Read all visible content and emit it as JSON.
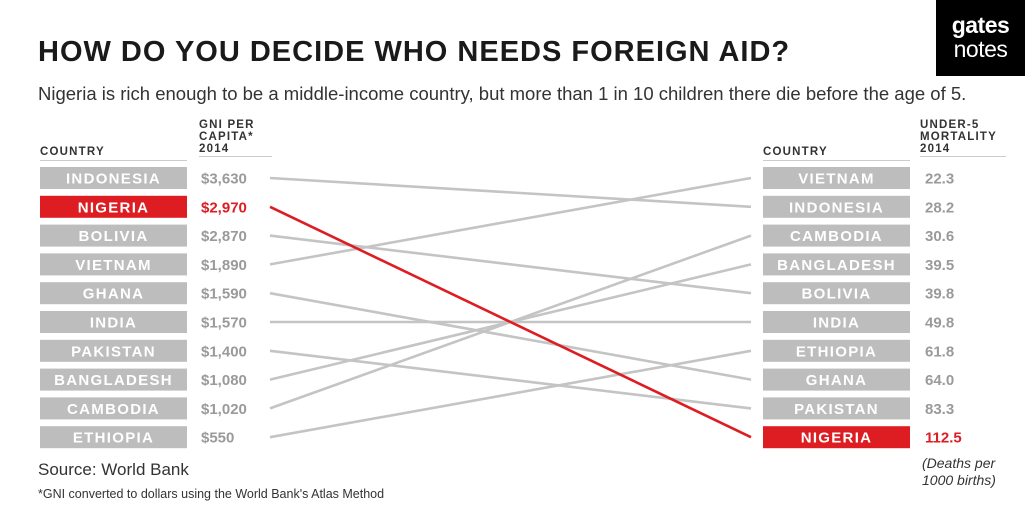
{
  "brand": {
    "line1": "gates",
    "line2": "notes"
  },
  "title": "HOW DO YOU DECIDE WHO NEEDS FOREIGN AID?",
  "subtitle": "Nigeria is rich enough to be a middle-income country, but more than 1 in 10 children there die before the age of 5.",
  "headers": {
    "left_country": "COUNTRY",
    "right_country": "COUNTRY",
    "gni_line1": "GNI PER",
    "gni_line2": "CAPITA*",
    "gni_year": "2014",
    "mort_line1": "UNDER-5",
    "mort_line2": "MORTALITY",
    "mort_year": "2014"
  },
  "source": "Source: World Bank",
  "footnote": "*GNI converted to dollars using the World Bank's Atlas Method",
  "units_line1": "(Deaths per",
  "units_line2": "1000 births)",
  "colors": {
    "highlight": "#dd1d22",
    "box": "#bdbdbd",
    "value_text": "#9a9a9a",
    "line": "#c4c4c4",
    "mort_text": "#9a9a9a"
  },
  "chart_data": {
    "type": "slope",
    "title": "HOW DO YOU DECIDE WHO NEEDS FOREIGN AID?",
    "highlight": "NIGERIA",
    "left": {
      "label": "GNI PER CAPITA* 2014",
      "entries": [
        {
          "country": "INDONESIA",
          "display": "$3,630",
          "value": 3630
        },
        {
          "country": "NIGERIA",
          "display": "$2,970",
          "value": 2970
        },
        {
          "country": "BOLIVIA",
          "display": "$2,870",
          "value": 2870
        },
        {
          "country": "VIETNAM",
          "display": "$1,890",
          "value": 1890
        },
        {
          "country": "GHANA",
          "display": "$1,590",
          "value": 1590
        },
        {
          "country": "INDIA",
          "display": "$1,570",
          "value": 1570
        },
        {
          "country": "PAKISTAN",
          "display": "$1,400",
          "value": 1400
        },
        {
          "country": "BANGLADESH",
          "display": "$1,080",
          "value": 1080
        },
        {
          "country": "CAMBODIA",
          "display": "$1,020",
          "value": 1020
        },
        {
          "country": "ETHIOPIA",
          "display": "$550",
          "value": 550
        }
      ]
    },
    "right": {
      "label": "UNDER-5 MORTALITY 2014",
      "entries": [
        {
          "country": "VIETNAM",
          "display": "22.3",
          "value": 22.3
        },
        {
          "country": "INDONESIA",
          "display": "28.2",
          "value": 28.2
        },
        {
          "country": "CAMBODIA",
          "display": "30.6",
          "value": 30.6
        },
        {
          "country": "BANGLADESH",
          "display": "39.5",
          "value": 39.5
        },
        {
          "country": "BOLIVIA",
          "display": "39.8",
          "value": 39.8
        },
        {
          "country": "INDIA",
          "display": "49.8",
          "value": 49.8
        },
        {
          "country": "ETHIOPIA",
          "display": "61.8",
          "value": 61.8
        },
        {
          "country": "GHANA",
          "display": "64.0",
          "value": 64.0
        },
        {
          "country": "PAKISTAN",
          "display": "83.3",
          "value": 83.3
        },
        {
          "country": "NIGERIA",
          "display": "112.5",
          "value": 112.5
        }
      ]
    }
  }
}
